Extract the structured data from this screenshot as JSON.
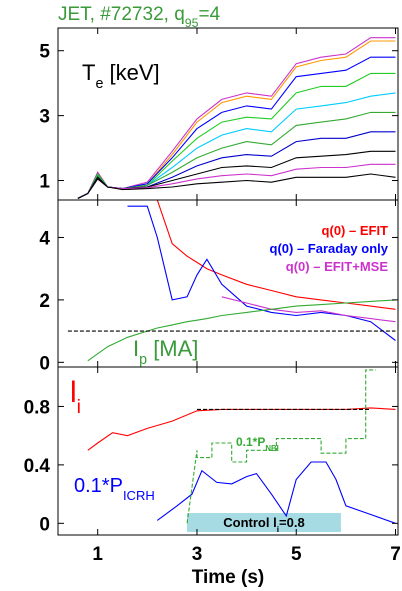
{
  "chart_data": [
    {
      "type": "line",
      "title": [
        {
          "text": "JET, #72732, q"
        },
        {
          "text": "95",
          "sub": true
        },
        {
          "text": "=4"
        }
      ],
      "title_color": "#3a9a3a",
      "annotations": [
        {
          "parts": [
            {
              "text": "T"
            },
            {
              "text": "e",
              "sub": true
            },
            {
              "text": " [keV]"
            }
          ],
          "color": "#000000"
        }
      ],
      "xlim": [
        0.2,
        7.05
      ],
      "ylim": [
        0.4,
        5.7
      ],
      "yticks": [
        1,
        3,
        5
      ],
      "x": [
        0.4,
        0.6,
        0.8,
        1.0,
        1.2,
        1.5,
        2.0,
        2.5,
        3.0,
        3.5,
        4.0,
        4.5,
        5.0,
        5.5,
        6.0,
        6.5,
        7.0
      ],
      "series": [
        {
          "color": "#ff9900",
          "values": [
            null,
            0.45,
            0.6,
            1.25,
            0.8,
            0.75,
            0.9,
            1.8,
            2.8,
            3.4,
            3.6,
            3.5,
            4.5,
            4.7,
            4.8,
            5.3,
            5.3
          ]
        },
        {
          "color": "#cc33cc",
          "values": [
            null,
            0.45,
            0.6,
            1.25,
            0.8,
            0.75,
            0.95,
            1.9,
            2.9,
            3.5,
            3.7,
            3.6,
            4.6,
            4.8,
            4.9,
            5.4,
            5.4
          ]
        },
        {
          "color": "#0000ff",
          "values": [
            null,
            0.45,
            0.6,
            1.2,
            0.8,
            0.75,
            0.9,
            1.7,
            2.6,
            3.1,
            3.3,
            3.2,
            4.2,
            4.3,
            4.4,
            4.8,
            4.8
          ]
        },
        {
          "color": "#22cc22",
          "values": [
            null,
            0.45,
            0.6,
            1.2,
            0.8,
            0.75,
            0.85,
            1.6,
            2.3,
            2.8,
            2.95,
            2.9,
            3.7,
            3.9,
            3.9,
            4.3,
            4.3
          ]
        },
        {
          "color": "#00ccff",
          "values": [
            null,
            0.45,
            0.6,
            1.15,
            0.8,
            0.75,
            0.85,
            1.4,
            2.0,
            2.4,
            2.6,
            2.5,
            3.2,
            3.3,
            3.4,
            3.6,
            3.7
          ]
        },
        {
          "color": "#33aa33",
          "values": [
            null,
            0.45,
            0.6,
            1.15,
            0.8,
            0.75,
            0.85,
            1.25,
            1.7,
            2.0,
            2.2,
            2.1,
            2.7,
            2.8,
            2.9,
            3.1,
            3.1
          ]
        },
        {
          "color": "#0000cc",
          "values": [
            null,
            0.45,
            0.6,
            1.1,
            0.8,
            0.75,
            0.8,
            1.1,
            1.45,
            1.7,
            1.8,
            1.75,
            2.2,
            2.3,
            2.3,
            2.5,
            2.5
          ]
        },
        {
          "color": "#000000",
          "values": [
            null,
            0.45,
            0.6,
            1.1,
            0.8,
            0.75,
            0.8,
            1.0,
            1.2,
            1.4,
            1.45,
            1.4,
            1.7,
            1.75,
            1.8,
            1.9,
            1.9
          ]
        },
        {
          "color": "#cc33cc",
          "values": [
            null,
            0.45,
            0.6,
            1.05,
            0.8,
            0.75,
            0.78,
            0.9,
            1.05,
            1.15,
            1.2,
            1.15,
            1.35,
            1.4,
            1.4,
            1.5,
            1.5
          ]
        },
        {
          "color": "#000000",
          "values": [
            null,
            0.45,
            0.6,
            1.05,
            0.8,
            0.72,
            0.75,
            0.8,
            0.9,
            0.95,
            1.0,
            0.95,
            1.1,
            1.1,
            1.1,
            1.2,
            1.1
          ]
        }
      ]
    },
    {
      "type": "line",
      "annotations": [
        {
          "parts": [
            {
              "text": "I"
            },
            {
              "text": "p",
              "sub": true
            },
            {
              "text": " [MA]"
            }
          ],
          "color": "#3a9a3a"
        }
      ],
      "xlim": [
        0.2,
        7.05
      ],
      "ylim": [
        -0.15,
        5.2
      ],
      "yticks": [
        0,
        2,
        4
      ],
      "x": [
        0.4,
        0.8,
        1.2,
        1.6,
        2.0,
        2.2,
        2.5,
        2.8,
        3.0,
        3.2,
        3.5,
        4.0,
        4.5,
        5.0,
        5.5,
        6.0,
        6.5,
        7.0
      ],
      "series": [
        {
          "name": "q(0) – EFIT",
          "color": "#ff0000",
          "values": [
            null,
            null,
            null,
            null,
            null,
            5.2,
            3.8,
            3.4,
            3.2,
            3.0,
            2.8,
            2.5,
            2.3,
            2.1,
            2.0,
            1.9,
            1.8,
            1.7
          ]
        },
        {
          "name": "q(0) – Faraday only",
          "color": "#0000ff",
          "values": [
            null,
            null,
            null,
            5.0,
            5.0,
            4.0,
            2.0,
            2.1,
            2.8,
            3.3,
            2.5,
            1.8,
            1.6,
            1.5,
            1.6,
            1.5,
            1.3,
            0.7
          ]
        },
        {
          "name": "q(0) – EFIT+MSE",
          "color": "#cc33cc",
          "values": [
            null,
            null,
            null,
            null,
            null,
            null,
            null,
            null,
            null,
            null,
            2.1,
            1.9,
            1.7,
            1.6,
            1.65,
            1.5,
            1.4,
            1.3
          ]
        },
        {
          "color": "#33aa33",
          "values": [
            null,
            0.05,
            0.5,
            0.8,
            1.0,
            1.1,
            1.2,
            1.3,
            1.35,
            1.4,
            1.5,
            1.6,
            1.7,
            1.8,
            1.85,
            1.9,
            1.95,
            2.0
          ]
        },
        {
          "color": "#000000",
          "dash": true,
          "values": [
            1,
            1,
            1,
            1,
            1,
            1,
            1,
            1,
            1,
            1,
            1,
            1,
            1,
            1,
            1,
            1,
            1,
            1
          ]
        }
      ]
    },
    {
      "type": "line",
      "xlabel": "Time (s)",
      "annotations": [
        {
          "parts": [
            {
              "text": "l"
            },
            {
              "text": "i",
              "sub": true
            }
          ],
          "color": "#ff0000"
        },
        {
          "parts": [
            {
              "text": "0.1*P"
            },
            {
              "text": "ICRH",
              "sub": true
            }
          ],
          "color": "#0000ff"
        },
        {
          "parts": [
            {
              "text": "0.1*P"
            },
            {
              "text": "NBI",
              "sub": true
            }
          ],
          "color": "#33aa33"
        },
        {
          "parts": [
            {
              "text": "Control l"
            },
            {
              "text": "i",
              "sub": true
            },
            {
              "text": "=0.8"
            }
          ],
          "color": "#000000",
          "box_color": "#a6dbe3",
          "span": [
            2.8,
            5.9
          ]
        }
      ],
      "xlim": [
        0.2,
        7.05
      ],
      "ylim": [
        -0.08,
        1.07
      ],
      "xticks": [
        1,
        3,
        5,
        7
      ],
      "yticks": [
        0,
        0.4,
        0.8
      ],
      "series": [
        {
          "color": "#ff0000",
          "x": [
            0.8,
            1.0,
            1.3,
            1.6,
            2.0,
            2.5,
            3.0,
            3.5,
            4.0,
            5.0,
            6.0,
            6.5,
            7.0
          ],
          "values": [
            0.5,
            0.55,
            0.62,
            0.6,
            0.65,
            0.7,
            0.77,
            0.78,
            0.78,
            0.78,
            0.78,
            0.79,
            0.78
          ]
        },
        {
          "color": "#0000ff",
          "x": [
            2.2,
            2.6,
            2.9,
            3.1,
            3.4,
            3.7,
            4.0,
            4.2,
            4.5,
            4.8,
            5.0,
            5.3,
            5.6,
            5.8,
            6.0,
            6.5,
            7.0
          ],
          "values": [
            0.02,
            0.12,
            0.2,
            0.36,
            0.28,
            0.27,
            0.32,
            0.34,
            0.2,
            0.05,
            0.3,
            0.42,
            0.42,
            0.3,
            0.12,
            0.06,
            0
          ]
        },
        {
          "color": "#33aa33",
          "dash": true,
          "x": [
            2.8,
            3.0,
            3.0,
            3.3,
            3.3,
            3.7,
            3.7,
            4.0,
            4.0,
            4.6,
            4.6,
            5.5,
            5.5,
            6.0,
            6.0,
            6.4,
            6.4,
            6.6
          ],
          "values": [
            0,
            0.5,
            0.45,
            0.45,
            0.55,
            0.55,
            0.42,
            0.42,
            0.5,
            0.5,
            0.58,
            0.58,
            0.48,
            0.48,
            0.58,
            0.58,
            1.05,
            1.05
          ]
        },
        {
          "color": "#000000",
          "dash": true,
          "x": [
            3.0,
            6.5
          ],
          "values": [
            0.78,
            0.78
          ]
        }
      ]
    }
  ]
}
